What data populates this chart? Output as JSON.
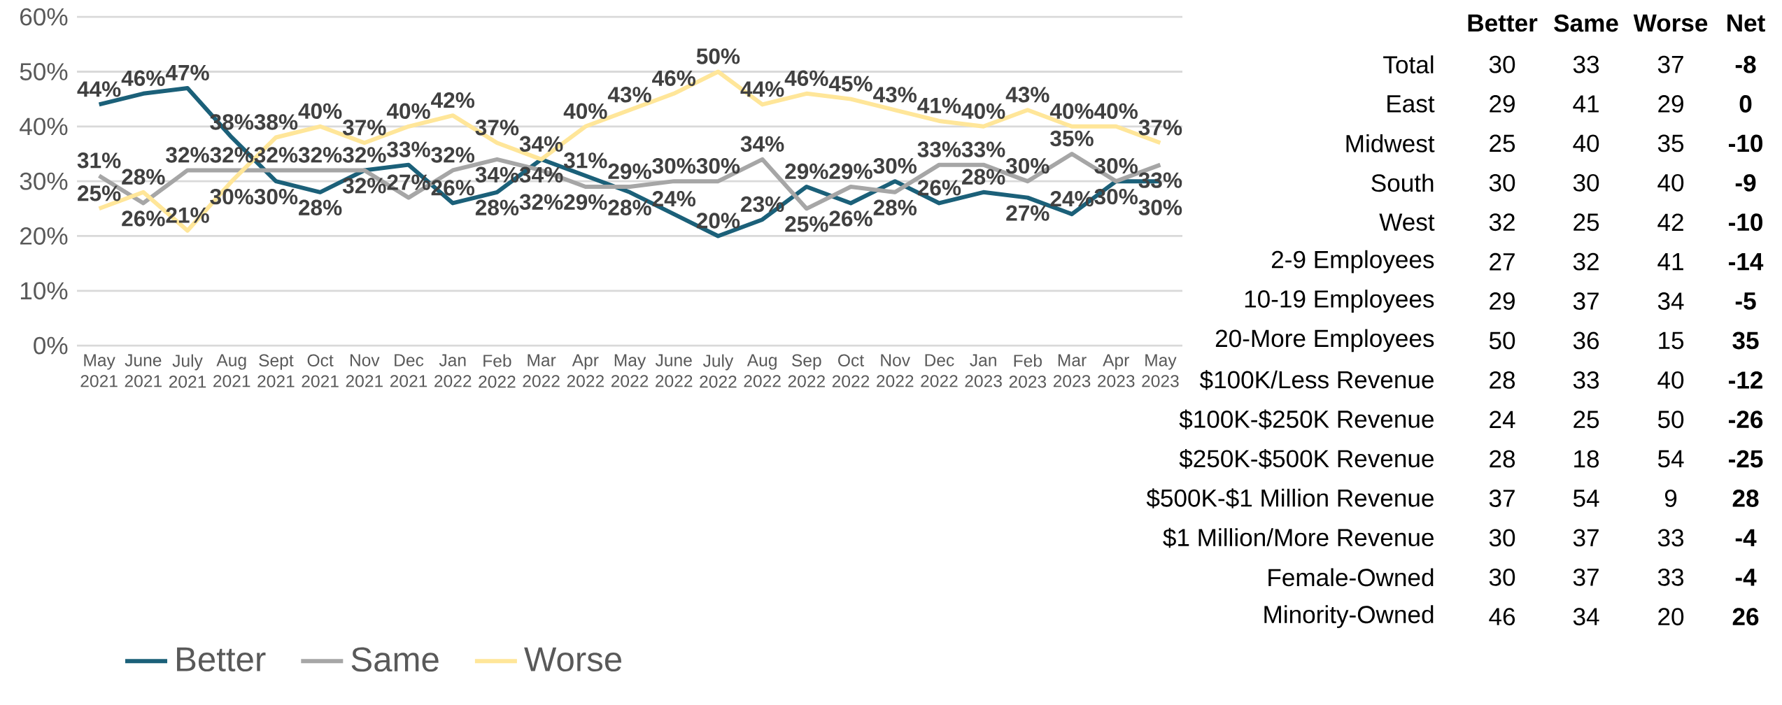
{
  "chart_data": [
    {
      "type": "line",
      "categories": [
        "May 2021",
        "June 2021",
        "July 2021",
        "Aug 2021",
        "Sept 2021",
        "Oct 2021",
        "Nov 2021",
        "Dec 2021",
        "Jan 2022",
        "Feb 2022",
        "Mar 2022",
        "Apr 2022",
        "May 2022",
        "June 2022",
        "July 2022",
        "Aug 2022",
        "Sep 2022",
        "Oct 2022",
        "Nov 2022",
        "Dec 2022",
        "Jan 2023",
        "Feb 2023",
        "Mar 2023",
        "Apr 2023",
        "May 2023"
      ],
      "series": [
        {
          "name": "Better",
          "color": "#1b6079",
          "values": [
            44,
            46,
            47,
            38,
            30,
            28,
            32,
            33,
            26,
            28,
            34,
            31,
            28,
            24,
            20,
            23,
            29,
            26,
            30,
            26,
            28,
            27,
            24,
            30,
            30
          ],
          "value_labels": [
            "44%",
            "46%",
            "47%",
            "38%",
            "30%",
            "28%",
            "32%",
            "33%",
            "26%",
            "28%",
            "34%",
            "31%",
            "28%",
            "24%",
            "20%",
            "23%",
            "29%",
            "26%",
            "30%",
            "26%",
            "28%",
            "27%",
            "24%",
            "30%",
            "30%"
          ]
        },
        {
          "name": "Same",
          "color": "#a6a6a6",
          "values": [
            31,
            26,
            32,
            32,
            32,
            32,
            32,
            27,
            32,
            34,
            32,
            29,
            29,
            30,
            30,
            34,
            25,
            29,
            28,
            33,
            33,
            30,
            35,
            30,
            33
          ],
          "value_labels": [
            "31%",
            "26%",
            "32%",
            "32%",
            "32%",
            "32%",
            "32%",
            "27%",
            "32%",
            "34%",
            "32%",
            "29%",
            "29%",
            "30%",
            "30%",
            "34%",
            "25%",
            "29%",
            "28%",
            "33%",
            "33%",
            "30%",
            "35%",
            "30%",
            "33%"
          ]
        },
        {
          "name": "Worse",
          "color": "#ffe699",
          "values": [
            25,
            28,
            21,
            30,
            38,
            40,
            37,
            40,
            42,
            37,
            34,
            40,
            43,
            46,
            50,
            44,
            46,
            45,
            43,
            41,
            40,
            43,
            40,
            40,
            37
          ],
          "value_labels": [
            "25%",
            "28%",
            "21%",
            "30%",
            "38%",
            "40%",
            "37%",
            "40%",
            "42%",
            "37%",
            "34%",
            "40%",
            "43%",
            "46%",
            "50%",
            "44%",
            "46%",
            "45%",
            "43%",
            "41%",
            "40%",
            "43%",
            "40%",
            "40%",
            "37%"
          ]
        }
      ],
      "ylim": [
        0,
        60
      ],
      "yticks": [
        {
          "value": 0,
          "label": "0%"
        },
        {
          "value": 10,
          "label": "10%"
        },
        {
          "value": 20,
          "label": "20%"
        },
        {
          "value": 30,
          "label": "30%"
        },
        {
          "value": 40,
          "label": "40%"
        },
        {
          "value": 50,
          "label": "50%"
        },
        {
          "value": 60,
          "label": "60%"
        }
      ],
      "grid": "y",
      "legend": "bottom"
    },
    {
      "type": "other",
      "categories": [
        "Total",
        "East",
        "Midwest",
        "South",
        "West",
        "2-9 Employees",
        "10-19 Employees",
        "20-More Employees",
        "$100K/Less Revenue",
        "$100K-$250K Revenue",
        "$250K-$500K Revenue",
        "$500K-$1 Million Revenue",
        "$1 Million/More Revenue",
        "Female-Owned",
        "Minority-Owned"
      ],
      "series": [
        {
          "name": "Better",
          "values": [
            30,
            29,
            25,
            30,
            32,
            27,
            29,
            50,
            28,
            24,
            28,
            37,
            30,
            30,
            46
          ]
        },
        {
          "name": "Same",
          "values": [
            33,
            41,
            40,
            30,
            25,
            32,
            37,
            36,
            33,
            25,
            18,
            54,
            37,
            37,
            34
          ]
        },
        {
          "name": "Worse",
          "values": [
            37,
            29,
            35,
            40,
            42,
            41,
            34,
            15,
            40,
            50,
            54,
            9,
            33,
            33,
            20
          ]
        },
        {
          "name": "Net",
          "values": [
            -8,
            0,
            -10,
            -9,
            -10,
            -14,
            -5,
            35,
            -12,
            -26,
            -25,
            28,
            -4,
            -4,
            26
          ]
        }
      ],
      "data_labels": true
    }
  ]
}
